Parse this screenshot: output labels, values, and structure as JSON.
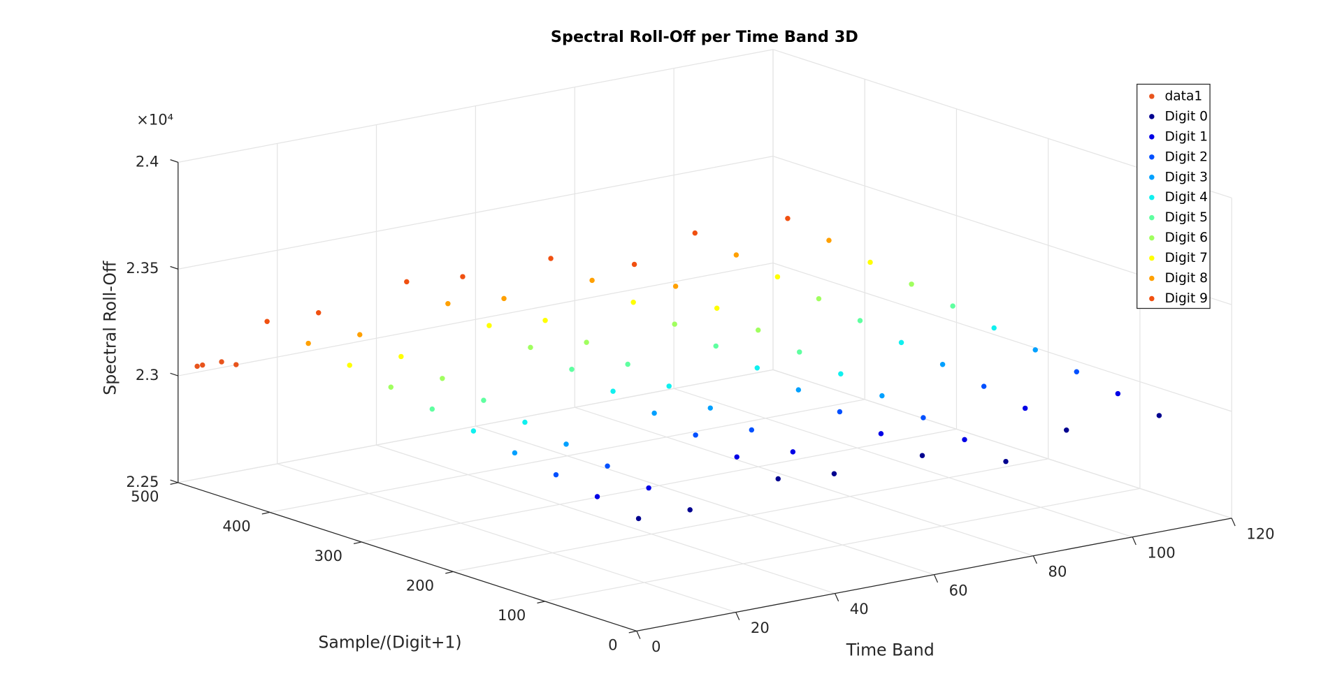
{
  "chart_data": {
    "type": "scatter3d",
    "title": "Spectral Roll-Off per Time Band 3D",
    "x_label": "Time Band",
    "y_label": "Sample/(Digit+1)",
    "z_label": "Spectral Roll-Off",
    "z_multiplier": "×10⁴",
    "xlim": [
      0,
      120
    ],
    "xticks": [
      0,
      20,
      40,
      60,
      80,
      100,
      120
    ],
    "ylim": [
      0,
      500
    ],
    "yticks": [
      0,
      100,
      200,
      300,
      400,
      500
    ],
    "zlim": [
      22500,
      24000
    ],
    "zticks": [
      {
        "value": 22500,
        "label": "2.25"
      },
      {
        "value": 23000,
        "label": "2.3"
      },
      {
        "value": 23500,
        "label": "2.35"
      },
      {
        "value": 24000,
        "label": "2.4"
      }
    ],
    "grid": true,
    "legend_position": "northeast",
    "series": [
      {
        "name": "data1",
        "color": "#e8541c",
        "x": [
          2,
          4,
          6,
          8
        ],
        "y": [
          490,
          495,
          485,
          480
        ],
        "z": [
          23050,
          23040,
          23060,
          23045
        ]
      },
      {
        "name": "Digit 0",
        "color": "#00008f",
        "x": [
          5,
          20,
          35,
          50,
          65,
          80,
          95,
          110
        ],
        "y": [
          25,
          50,
          35,
          55,
          40,
          30,
          45,
          25
        ],
        "z": [
          22970,
          22910,
          23010,
          22940,
          22980,
          22900,
          22960,
          22990
        ]
      },
      {
        "name": "Digit 1",
        "color": "#0000e6",
        "x": [
          5,
          20,
          35,
          50,
          65,
          80,
          95,
          110
        ],
        "y": [
          70,
          95,
          80,
          100,
          85,
          75,
          90,
          70
        ],
        "z": [
          23010,
          22950,
          23050,
          22980,
          23020,
          22940,
          23000,
          23030
        ]
      },
      {
        "name": "Digit 2",
        "color": "#0050ff",
        "x": [
          5,
          20,
          35,
          50,
          65,
          80,
          95,
          110
        ],
        "y": [
          115,
          140,
          125,
          145,
          130,
          120,
          135,
          115
        ],
        "z": [
          23050,
          22990,
          23090,
          23020,
          23060,
          22980,
          23040,
          23070
        ]
      },
      {
        "name": "Digit 3",
        "color": "#00a0ff",
        "x": [
          5,
          20,
          35,
          50,
          65,
          80,
          95,
          110
        ],
        "y": [
          160,
          185,
          170,
          190,
          175,
          165,
          180,
          160
        ],
        "z": [
          23090,
          23030,
          23130,
          23060,
          23100,
          23020,
          23080,
          23110
        ]
      },
      {
        "name": "Digit 4",
        "color": "#10f0ef",
        "x": [
          5,
          20,
          35,
          50,
          65,
          80,
          95,
          110
        ],
        "y": [
          205,
          230,
          215,
          235,
          220,
          210,
          225,
          205
        ],
        "z": [
          23130,
          23070,
          23170,
          23100,
          23140,
          23060,
          23120,
          23150
        ]
      },
      {
        "name": "Digit 5",
        "color": "#5fffa0",
        "x": [
          5,
          20,
          35,
          50,
          65,
          80,
          95,
          110
        ],
        "y": [
          250,
          275,
          260,
          280,
          265,
          255,
          270,
          250
        ],
        "z": [
          23170,
          23110,
          23210,
          23140,
          23180,
          23100,
          23160,
          23190
        ]
      },
      {
        "name": "Digit 6",
        "color": "#a0ff5f",
        "x": [
          5,
          20,
          35,
          50,
          65,
          80,
          95,
          110
        ],
        "y": [
          295,
          320,
          305,
          325,
          310,
          300,
          315,
          295
        ],
        "z": [
          23210,
          23150,
          23250,
          23180,
          23220,
          23140,
          23200,
          23230
        ]
      },
      {
        "name": "Digit 7",
        "color": "#ffff00",
        "x": [
          5,
          20,
          35,
          50,
          65,
          80,
          95,
          110
        ],
        "y": [
          340,
          365,
          350,
          370,
          355,
          345,
          360,
          340
        ],
        "z": [
          23250,
          23190,
          23290,
          23220,
          23260,
          23180,
          23240,
          23270
        ]
      },
      {
        "name": "Digit 8",
        "color": "#ffa000",
        "x": [
          5,
          20,
          35,
          50,
          65,
          80,
          95,
          110
        ],
        "y": [
          385,
          410,
          395,
          415,
          400,
          390,
          405,
          385
        ],
        "z": [
          23290,
          23230,
          23330,
          23260,
          23300,
          23220,
          23280,
          23310
        ]
      },
      {
        "name": "Digit 9",
        "color": "#f05010",
        "x": [
          5,
          20,
          35,
          50,
          65,
          80,
          95,
          110
        ],
        "y": [
          430,
          455,
          440,
          460,
          445,
          435,
          450,
          430
        ],
        "z": [
          23330,
          23270,
          23370,
          23300,
          23340,
          23260,
          23320,
          23350
        ]
      }
    ]
  }
}
